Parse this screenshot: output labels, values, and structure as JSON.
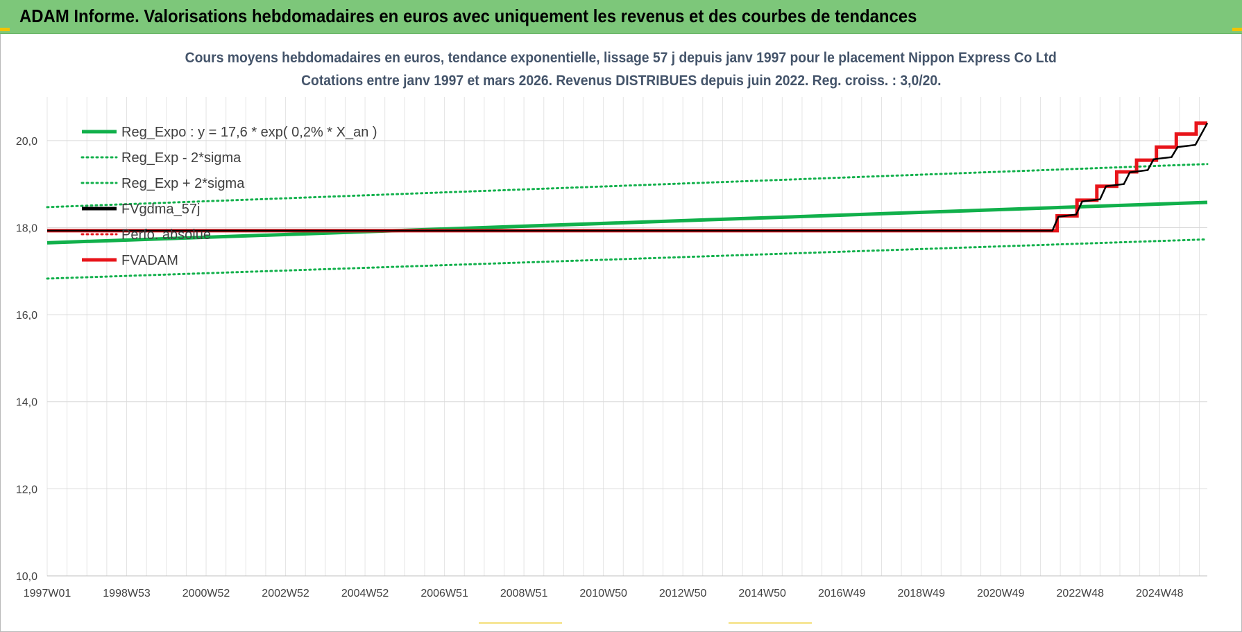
{
  "banner": {
    "title": "ADAM Informe. Valorisations hebdomadaires en euros avec uniquement les revenus et des courbes de tendances"
  },
  "colors": {
    "banner": "#7dc77a",
    "green": "#11b04b",
    "red": "#e8141a",
    "black": "#000000",
    "title": "#44546a"
  },
  "chart_data": {
    "type": "line",
    "title_line1": "Cours moyens hebdomadaires en euros, tendance exponentielle, lissage 57 j depuis janv 1997 pour le placement Nippon Express Co Ltd",
    "title_line2": "Cotations entre janv 1997 et mars 2026. Revenus DISTRIBUES depuis juin 2022. Reg. croiss. : 3,0/20.",
    "xlabel": "",
    "ylabel": "",
    "x_range": [
      1997.0,
      2026.2
    ],
    "ylim": [
      10,
      21
    ],
    "y_ticks": [
      10,
      12,
      14,
      16,
      18,
      20
    ],
    "y_tick_labels": [
      "10,0",
      "12,0",
      "14,0",
      "16,0",
      "18,0",
      "20,0"
    ],
    "x_tick_labels": [
      "1997W01",
      "1998W53",
      "2000W52",
      "2002W52",
      "2004W52",
      "2006W51",
      "2008W51",
      "2010W50",
      "2012W50",
      "2014W50",
      "2016W49",
      "2018W49",
      "2020W49",
      "2022W48",
      "2024W48"
    ],
    "x_tick_values": [
      1997.0,
      1999.0,
      2001.0,
      2003.0,
      2005.0,
      2007.0,
      2009.0,
      2011.0,
      2013.0,
      2015.0,
      2017.0,
      2019.0,
      2021.0,
      2023.0,
      2025.0
    ],
    "grid": "vertical and horizontal, light gray",
    "legend_position": "top-left",
    "series": [
      {
        "name": "Reg_Expo : y = 17,6 * exp( 0,2% *  X_an )",
        "style": "solid",
        "color": "#11b04b",
        "x": [
          1997.0,
          2026.2
        ],
        "y": [
          17.65,
          18.58
        ]
      },
      {
        "name": "Reg_Exp - 2*sigma",
        "style": "dotted",
        "color": "#11b04b",
        "x": [
          1997.0,
          2026.2
        ],
        "y": [
          16.83,
          17.73
        ]
      },
      {
        "name": "Reg_Exp + 2*sigma",
        "style": "dotted",
        "color": "#11b04b",
        "x": [
          1997.0,
          2026.2
        ],
        "y": [
          18.47,
          19.46
        ]
      },
      {
        "name": "FVgdma_57j",
        "style": "solid",
        "color": "#000000",
        "x": [
          1997.0,
          2022.3,
          2022.45,
          2022.9,
          2023.05,
          2023.5,
          2023.65,
          2024.1,
          2024.25,
          2024.7,
          2024.85,
          2025.3,
          2025.45,
          2025.9,
          2026.2
        ],
        "y": [
          17.93,
          17.93,
          18.25,
          18.3,
          18.6,
          18.65,
          18.95,
          19.0,
          19.27,
          19.32,
          19.57,
          19.62,
          19.85,
          19.9,
          20.4
        ]
      },
      {
        "name": "Perfo. absolue",
        "style": "dotted",
        "color": "#e8141a",
        "x": [],
        "y": []
      },
      {
        "name": "FVADAM",
        "style": "solid",
        "color": "#e8141a",
        "x": [
          1997.0,
          2022.42,
          2022.42,
          2022.92,
          2022.92,
          2023.42,
          2023.42,
          2023.92,
          2023.92,
          2024.42,
          2024.42,
          2024.92,
          2024.92,
          2025.42,
          2025.42,
          2025.92,
          2025.92,
          2026.2
        ],
        "y": [
          17.93,
          17.93,
          18.27,
          18.27,
          18.63,
          18.63,
          18.95,
          18.95,
          19.28,
          19.28,
          19.55,
          19.55,
          19.85,
          19.85,
          20.15,
          20.15,
          20.4,
          20.4
        ]
      }
    ]
  }
}
